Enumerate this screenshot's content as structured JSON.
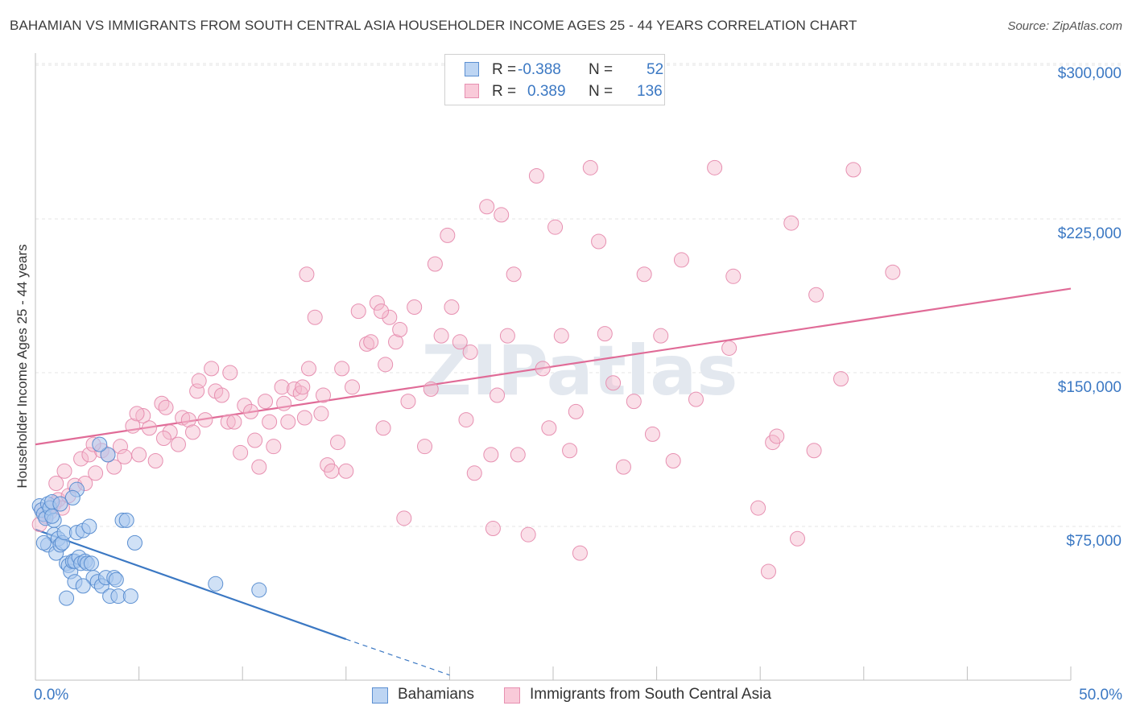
{
  "title": "BAHAMIAN VS IMMIGRANTS FROM SOUTH CENTRAL ASIA HOUSEHOLDER INCOME AGES 25 - 44 YEARS CORRELATION CHART",
  "source": "Source: ZipAtlas.com",
  "watermark": "ZIPatlas",
  "colors": {
    "blue": "#3b78c3",
    "blue_fill": "#a9c8ee",
    "pink": "#e06b97",
    "pink_fill": "#f4b8cc",
    "axis_text": "#3b78c3"
  },
  "legend": {
    "r_label": "R =",
    "n_label": "N =",
    "rows": [
      {
        "r": "-0.388",
        "n": "52",
        "color": "blue"
      },
      {
        "r": "0.389",
        "n": "136",
        "color": "pink"
      }
    ]
  },
  "bottom_legend": {
    "series1": "Bahamians",
    "series2": "Immigrants from South Central Asia"
  },
  "chart_data": {
    "type": "scatter",
    "title": "BAHAMIAN VS IMMIGRANTS FROM SOUTH CENTRAL ASIA HOUSEHOLDER INCOME AGES 25 - 44 YEARS CORRELATION CHART",
    "xlabel": "",
    "ylabel": "Householder Income Ages 25 - 44 years",
    "xlim": [
      0,
      50
    ],
    "ylim": [
      0,
      310000
    ],
    "x_tick_labels": [
      "0.0%",
      "50.0%"
    ],
    "y_ticks": [
      75000,
      150000,
      225000,
      300000
    ],
    "y_tick_labels": [
      "$75,000",
      "$150,000",
      "$225,000",
      "$300,000"
    ],
    "grid": true,
    "legend_placement": "top-center",
    "series": [
      {
        "name": "Bahamians",
        "color": "#3b78c3",
        "trend": {
          "x": [
            0.0,
            15.0
          ],
          "y": [
            73500,
            20000
          ],
          "dashed_to": [
            20.0,
            2500
          ]
        },
        "points": [
          [
            0.2,
            85000
          ],
          [
            0.3,
            83000
          ],
          [
            0.4,
            81000
          ],
          [
            0.5,
            79000
          ],
          [
            0.6,
            86000
          ],
          [
            0.7,
            84000
          ],
          [
            0.8,
            87000
          ],
          [
            0.9,
            78000
          ],
          [
            0.6,
            66000
          ],
          [
            0.9,
            71000
          ],
          [
            1.0,
            62000
          ],
          [
            1.1,
            69000
          ],
          [
            1.2,
            66000
          ],
          [
            1.3,
            67000
          ],
          [
            1.4,
            72000
          ],
          [
            1.5,
            57000
          ],
          [
            1.6,
            56000
          ],
          [
            1.7,
            53000
          ],
          [
            1.8,
            58000
          ],
          [
            1.9,
            58000
          ],
          [
            2.0,
            72000
          ],
          [
            2.1,
            60000
          ],
          [
            2.2,
            57000
          ],
          [
            2.3,
            73000
          ],
          [
            2.4,
            58000
          ],
          [
            2.5,
            57000
          ],
          [
            2.6,
            75000
          ],
          [
            2.8,
            50000
          ],
          [
            3.0,
            48000
          ],
          [
            3.2,
            46000
          ],
          [
            3.4,
            50000
          ],
          [
            3.6,
            41000
          ],
          [
            3.8,
            50000
          ],
          [
            4.0,
            41000
          ],
          [
            4.2,
            78000
          ],
          [
            4.4,
            78000
          ],
          [
            4.6,
            41000
          ],
          [
            4.8,
            67000
          ],
          [
            1.5,
            40000
          ],
          [
            1.9,
            48000
          ],
          [
            2.3,
            46000
          ],
          [
            3.5,
            110000
          ],
          [
            3.1,
            115000
          ],
          [
            2.0,
            93000
          ],
          [
            1.8,
            89000
          ],
          [
            8.7,
            47000
          ],
          [
            10.8,
            44000
          ],
          [
            0.4,
            67000
          ],
          [
            0.8,
            80000
          ],
          [
            1.2,
            86000
          ],
          [
            2.7,
            57000
          ],
          [
            3.9,
            49000
          ]
        ]
      },
      {
        "name": "Immigrants from South Central Asia",
        "color": "#e06b97",
        "trend": {
          "x": [
            0.0,
            50.0
          ],
          "y": [
            115000,
            191000
          ]
        },
        "points": [
          [
            0.3,
            83000
          ],
          [
            0.5,
            80000
          ],
          [
            0.7,
            82000
          ],
          [
            0.9,
            86000
          ],
          [
            1.1,
            88000
          ],
          [
            1.3,
            84000
          ],
          [
            1.6,
            90000
          ],
          [
            1.9,
            95000
          ],
          [
            2.2,
            108000
          ],
          [
            2.4,
            96000
          ],
          [
            2.6,
            110000
          ],
          [
            2.9,
            101000
          ],
          [
            3.2,
            112000
          ],
          [
            3.5,
            110000
          ],
          [
            3.8,
            104000
          ],
          [
            4.1,
            114000
          ],
          [
            4.3,
            109000
          ],
          [
            4.7,
            124000
          ],
          [
            5.0,
            110000
          ],
          [
            5.2,
            129000
          ],
          [
            5.5,
            123000
          ],
          [
            5.8,
            107000
          ],
          [
            6.1,
            135000
          ],
          [
            6.3,
            133000
          ],
          [
            6.5,
            121000
          ],
          [
            6.9,
            115000
          ],
          [
            7.1,
            128000
          ],
          [
            7.4,
            127000
          ],
          [
            7.6,
            121000
          ],
          [
            7.8,
            141000
          ],
          [
            7.9,
            146000
          ],
          [
            8.2,
            127000
          ],
          [
            8.5,
            152000
          ],
          [
            8.7,
            141000
          ],
          [
            9.0,
            139000
          ],
          [
            9.3,
            126000
          ],
          [
            9.6,
            126000
          ],
          [
            9.9,
            111000
          ],
          [
            10.1,
            134000
          ],
          [
            10.4,
            131000
          ],
          [
            10.6,
            117000
          ],
          [
            10.8,
            104000
          ],
          [
            11.1,
            136000
          ],
          [
            11.3,
            126000
          ],
          [
            11.5,
            114000
          ],
          [
            11.9,
            143000
          ],
          [
            12.0,
            135000
          ],
          [
            12.2,
            126000
          ],
          [
            12.5,
            142000
          ],
          [
            12.8,
            140000
          ],
          [
            13.0,
            128000
          ],
          [
            13.1,
            198000
          ],
          [
            13.2,
            152000
          ],
          [
            13.5,
            177000
          ],
          [
            13.8,
            130000
          ],
          [
            13.9,
            139000
          ],
          [
            14.1,
            105000
          ],
          [
            14.3,
            102000
          ],
          [
            14.6,
            116000
          ],
          [
            14.8,
            152000
          ],
          [
            15.0,
            102000
          ],
          [
            15.3,
            143000
          ],
          [
            15.6,
            180000
          ],
          [
            16.0,
            164000
          ],
          [
            16.2,
            165000
          ],
          [
            16.5,
            184000
          ],
          [
            16.8,
            123000
          ],
          [
            16.9,
            154000
          ],
          [
            17.1,
            177000
          ],
          [
            17.4,
            165000
          ],
          [
            17.6,
            171000
          ],
          [
            17.8,
            79000
          ],
          [
            18.3,
            182000
          ],
          [
            18.8,
            114000
          ],
          [
            19.1,
            142000
          ],
          [
            19.3,
            203000
          ],
          [
            19.6,
            168000
          ],
          [
            19.9,
            217000
          ],
          [
            20.1,
            182000
          ],
          [
            20.5,
            165000
          ],
          [
            20.8,
            127000
          ],
          [
            21.2,
            101000
          ],
          [
            21.8,
            231000
          ],
          [
            22.0,
            110000
          ],
          [
            22.1,
            74000
          ],
          [
            22.3,
            139000
          ],
          [
            22.5,
            227000
          ],
          [
            22.8,
            168000
          ],
          [
            23.1,
            198000
          ],
          [
            23.3,
            110000
          ],
          [
            23.8,
            71000
          ],
          [
            24.2,
            246000
          ],
          [
            24.5,
            152000
          ],
          [
            24.8,
            123000
          ],
          [
            25.1,
            221000
          ],
          [
            25.4,
            168000
          ],
          [
            25.8,
            112000
          ],
          [
            26.1,
            131000
          ],
          [
            26.3,
            62000
          ],
          [
            26.8,
            250000
          ],
          [
            27.2,
            214000
          ],
          [
            27.5,
            169000
          ],
          [
            27.9,
            145000
          ],
          [
            28.4,
            104000
          ],
          [
            28.9,
            136000
          ],
          [
            29.4,
            198000
          ],
          [
            29.8,
            120000
          ],
          [
            30.2,
            168000
          ],
          [
            30.8,
            107000
          ],
          [
            31.2,
            205000
          ],
          [
            31.9,
            137000
          ],
          [
            32.8,
            250000
          ],
          [
            33.5,
            162000
          ],
          [
            33.7,
            197000
          ],
          [
            34.9,
            84000
          ],
          [
            35.4,
            53000
          ],
          [
            35.6,
            116000
          ],
          [
            35.8,
            119000
          ],
          [
            36.5,
            223000
          ],
          [
            36.8,
            69000
          ],
          [
            37.6,
            112000
          ],
          [
            37.7,
            188000
          ],
          [
            38.9,
            147000
          ],
          [
            39.5,
            249000
          ],
          [
            41.4,
            199000
          ],
          [
            0.2,
            76000
          ],
          [
            1.0,
            96000
          ],
          [
            1.4,
            102000
          ],
          [
            2.8,
            115000
          ],
          [
            4.9,
            130000
          ],
          [
            9.4,
            150000
          ],
          [
            16.7,
            180000
          ],
          [
            21.0,
            160000
          ],
          [
            12.9,
            143000
          ],
          [
            18.0,
            136000
          ],
          [
            6.2,
            118000
          ]
        ]
      }
    ]
  }
}
